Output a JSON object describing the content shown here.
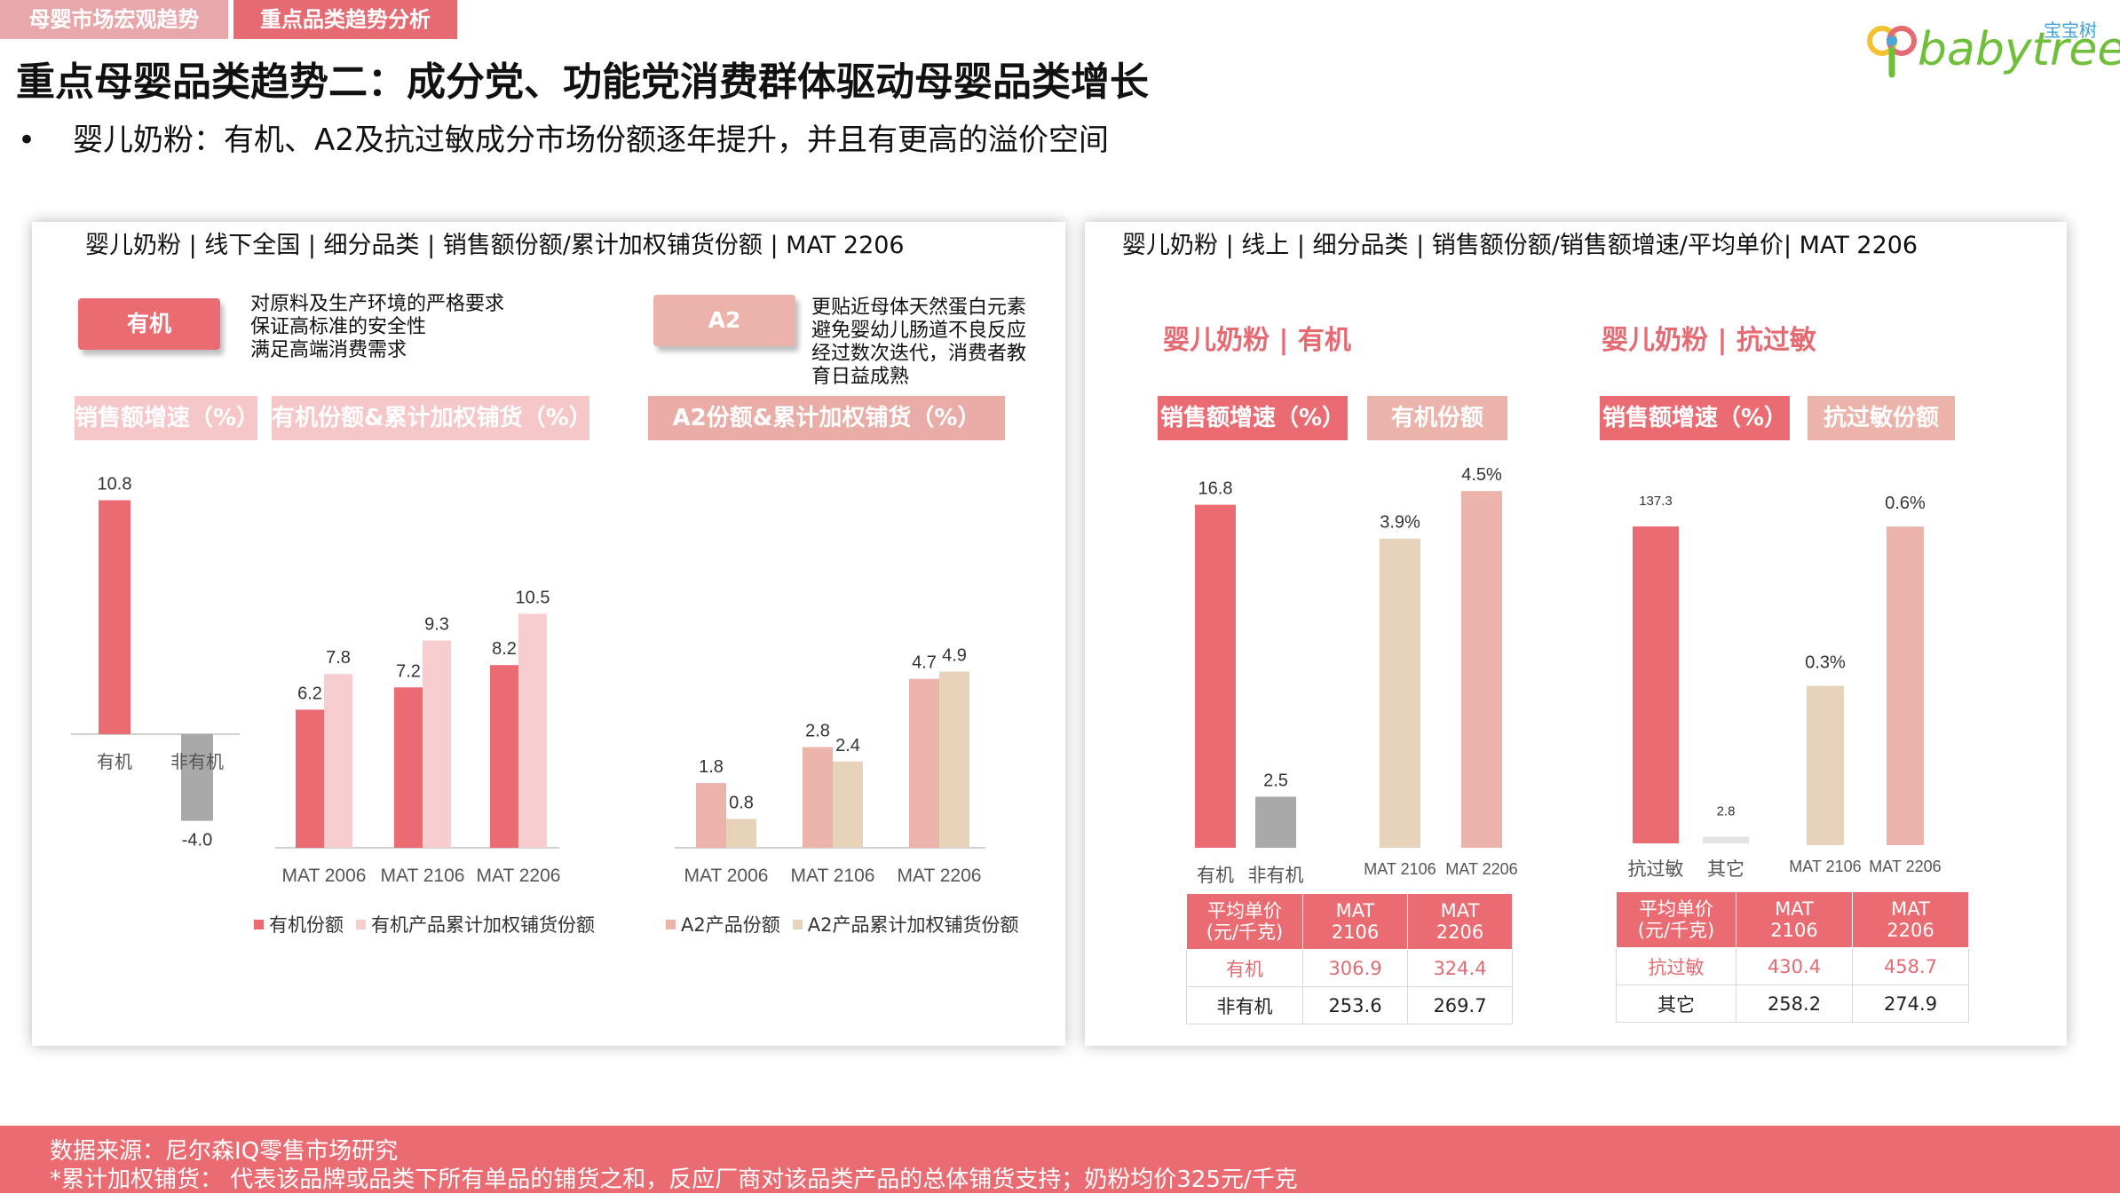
{
  "tabs": [
    {
      "label": "母婴市场宏观趋势",
      "color": "#e8a8ab"
    },
    {
      "label": "重点品类趋势分析",
      "color": "#e56a72"
    }
  ],
  "logo": {
    "cn": "宝宝树",
    "en": "babytree",
    "icon": "babytree-logo-icon"
  },
  "title": "重点母婴品类趋势二：成分党、功能党消费群体驱动母婴品类增长",
  "bullet": "婴儿奶粉：有机、A2及抗过敏成分市场份额逐年提升，并且有更高的溢价空间",
  "colors": {
    "red": "#ea6c72",
    "pink": "#f7cdd0",
    "gray": "#a9a9a9",
    "salmon": "#ebb3aa",
    "beige": "#e7d3ba",
    "hdr_light": "#f5c7c9",
    "hdr_a2": "#eaaca6"
  },
  "left": {
    "title": "婴儿奶粉 | 线下全国 | 细分品类 | 销售额份额/累计加权铺货份额 | MAT 2206",
    "organic_tag": "有机",
    "organic_desc": "对原料及生产环境的严格要求\n保证高标准的安全性\n满足高端消费需求",
    "a2_tag": "A2",
    "a2_desc": "更贴近母体天然蛋白元素\n避免婴幼儿肠道不良反应\n经过数次迭代，消费者教\n育日益成熟",
    "hdr_growth": "销售额增速（%）",
    "hdr_organic": "有机份额&累计加权铺货（%）",
    "hdr_a2": "A2份额&累计加权铺货（%）",
    "legend_organic": [
      "有机份额",
      "有机产品累计加权铺货份额"
    ],
    "legend_a2": [
      "A2产品份额",
      "A2产品累计加权铺货份额"
    ]
  },
  "right": {
    "title": "婴儿奶粉 | 线上 | 细分品类 | 销售额份额/销售额增速/平均单价| MAT 2206",
    "sect_organic": "婴儿奶粉 | 有机",
    "sect_anti": "婴儿奶粉 | 抗过敏",
    "hdr_growth1": "销售额增速（%）",
    "hdr_share1": "有机份额",
    "hdr_growth2": "销售额增速（%）",
    "hdr_share2": "抗过敏份额",
    "table_organic": {
      "header": [
        "平均单价\n(元/千克)",
        "MAT\n2106",
        "MAT\n2206"
      ],
      "rows": [
        [
          "有机",
          "306.9",
          "324.4"
        ],
        [
          "非有机",
          "253.6",
          "269.7"
        ]
      ]
    },
    "table_anti": {
      "header": [
        "平均单价\n(元/千克)",
        "MAT\n2106",
        "MAT\n2206"
      ],
      "rows": [
        [
          "抗过敏",
          "430.4",
          "458.7"
        ],
        [
          "其它",
          "258.2",
          "274.9"
        ]
      ]
    }
  },
  "footer": {
    "source": "数据来源：尼尔森IQ零售市场研究",
    "note": "*累计加权铺货： 代表该品牌或品类下所有单品的铺货之和，反应厂商对该品类产品的总体铺货支持；奶粉均价325元/千克"
  },
  "chart_data": [
    {
      "type": "bar",
      "title": "销售额增速（%）",
      "categories": [
        "有机",
        "非有机"
      ],
      "values": [
        10.8,
        -4.0
      ],
      "value_labels": [
        "10.8",
        "-4.0"
      ]
    },
    {
      "type": "bar",
      "title": "有机份额&累计加权铺货（%）",
      "categories": [
        "MAT 2006",
        "MAT 2106",
        "MAT 2206"
      ],
      "series": [
        {
          "name": "有机份额",
          "values": [
            6.2,
            7.2,
            8.2
          ]
        },
        {
          "name": "有机产品累计加权铺货份额",
          "values": [
            7.8,
            9.3,
            10.5
          ]
        }
      ]
    },
    {
      "type": "bar",
      "title": "A2份额&累计加权铺货（%）",
      "categories": [
        "MAT 2006",
        "MAT 2106",
        "MAT 2206"
      ],
      "series": [
        {
          "name": "A2产品份额",
          "values": [
            1.8,
            2.8,
            4.7
          ]
        },
        {
          "name": "A2产品累计加权铺货份额",
          "values": [
            0.8,
            2.4,
            4.9
          ]
        }
      ]
    },
    {
      "type": "bar",
      "title": "销售额增速（%）",
      "categories": [
        "有机",
        "非有机"
      ],
      "values": [
        16.8,
        2.5
      ],
      "value_labels": [
        "16.8",
        "2.5"
      ]
    },
    {
      "type": "bar",
      "title": "有机份额",
      "categories": [
        "MAT 2106",
        "MAT 2206"
      ],
      "values": [
        3.9,
        4.5
      ],
      "value_labels": [
        "3.9%",
        "4.5%"
      ]
    },
    {
      "type": "bar",
      "title": "销售额增速（%）",
      "categories": [
        "抗过敏",
        "其它"
      ],
      "values": [
        137.3,
        2.8
      ],
      "value_labels": [
        "137.3",
        "2.8"
      ]
    },
    {
      "type": "bar",
      "title": "抗过敏份额",
      "categories": [
        "MAT 2106",
        "MAT 2206"
      ],
      "values": [
        0.3,
        0.6
      ],
      "value_labels": [
        "0.3%",
        "0.6%"
      ]
    }
  ]
}
